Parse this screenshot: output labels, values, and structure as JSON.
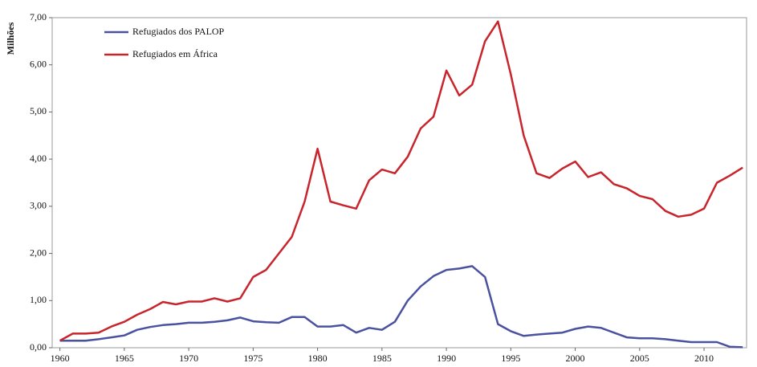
{
  "chart_data": {
    "type": "line",
    "y_label": "Milhões",
    "x": [
      1960,
      1961,
      1962,
      1963,
      1964,
      1965,
      1966,
      1967,
      1968,
      1969,
      1970,
      1971,
      1972,
      1973,
      1974,
      1975,
      1976,
      1977,
      1978,
      1979,
      1980,
      1981,
      1982,
      1983,
      1984,
      1985,
      1986,
      1987,
      1988,
      1989,
      1990,
      1991,
      1992,
      1993,
      1994,
      1995,
      1996,
      1997,
      1998,
      1999,
      2000,
      2001,
      2002,
      2003,
      2004,
      2005,
      2006,
      2007,
      2008,
      2009,
      2010,
      2011,
      2012,
      2013
    ],
    "series": [
      {
        "name": "Refugiados dos PALOP",
        "color": "#4a52a0",
        "values": [
          0.15,
          0.15,
          0.15,
          0.18,
          0.22,
          0.26,
          0.38,
          0.44,
          0.48,
          0.5,
          0.53,
          0.53,
          0.55,
          0.58,
          0.64,
          0.56,
          0.54,
          0.53,
          0.65,
          0.65,
          0.45,
          0.45,
          0.48,
          0.32,
          0.42,
          0.38,
          0.55,
          1.0,
          1.3,
          1.52,
          1.65,
          1.68,
          1.73,
          1.5,
          0.5,
          0.35,
          0.25,
          0.28,
          0.3,
          0.32,
          0.4,
          0.45,
          0.42,
          0.32,
          0.22,
          0.2,
          0.2,
          0.18,
          0.15,
          0.12,
          0.12,
          0.12,
          0.02,
          0.01
        ]
      },
      {
        "name": "Refugiados em África",
        "color": "#c8242b",
        "values": [
          0.15,
          0.3,
          0.3,
          0.32,
          0.45,
          0.55,
          0.7,
          0.82,
          0.97,
          0.92,
          0.98,
          0.98,
          1.05,
          0.98,
          1.05,
          1.5,
          1.65,
          2.0,
          2.35,
          3.1,
          4.22,
          3.1,
          3.02,
          2.95,
          3.55,
          3.78,
          3.7,
          4.05,
          4.65,
          4.9,
          5.88,
          5.35,
          5.58,
          6.5,
          6.92,
          5.8,
          4.5,
          3.7,
          3.6,
          3.8,
          3.95,
          3.62,
          3.72,
          3.47,
          3.38,
          3.22,
          3.15,
          2.9,
          2.78,
          2.82,
          2.95,
          3.5,
          3.65,
          3.82
        ]
      }
    ],
    "xlim": [
      1959.4,
      2013.3
    ],
    "xticks": [
      1960,
      1965,
      1970,
      1975,
      1980,
      1985,
      1990,
      1995,
      2000,
      2005,
      2010
    ],
    "ylim": [
      0,
      7
    ],
    "yticks": [
      {
        "value": 0,
        "label": "0,00"
      },
      {
        "value": 1,
        "label": "1,00"
      },
      {
        "value": 2,
        "label": "2,00"
      },
      {
        "value": 3,
        "label": "3,00"
      },
      {
        "value": 4,
        "label": "4,00"
      },
      {
        "value": 5,
        "label": "5,00"
      },
      {
        "value": 6,
        "label": "6,00"
      },
      {
        "value": 7,
        "label": "7,00"
      }
    ],
    "legend": "upper left"
  }
}
